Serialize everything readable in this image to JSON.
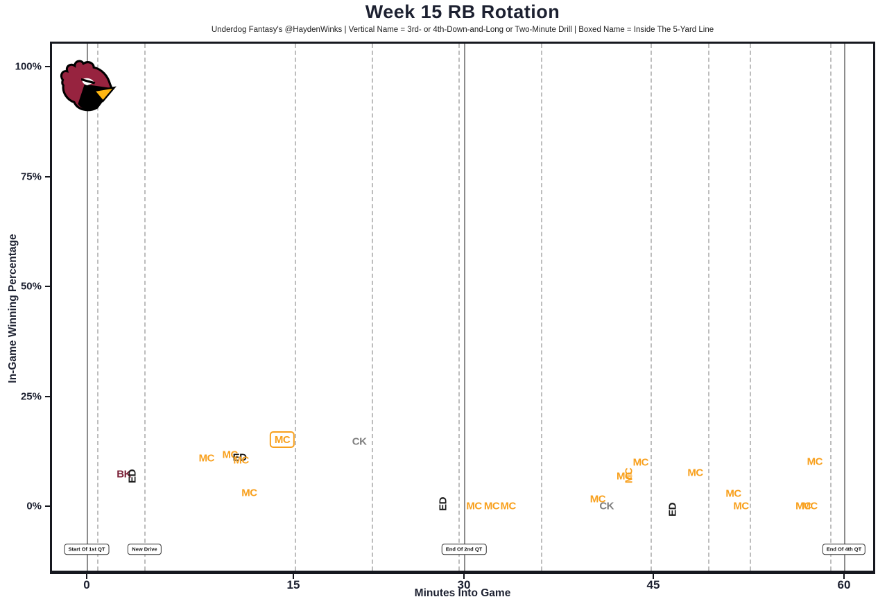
{
  "page": {
    "title": "Week 15 RB Rotation",
    "subtitle": "Underdog Fantasy's @HaydenWinks | Vertical Name = 3rd- or 4th-Down-and-Long or Two-Minute Drill | Boxed Name = Inside The 5-Yard Line"
  },
  "logo": {
    "team": "Arizona Cardinals",
    "colors": {
      "head": "#97233F",
      "outline": "#000000",
      "beak": "#FFB612",
      "eye": "#FFFFFF"
    }
  },
  "chart_data": {
    "type": "scatter",
    "title": "Week 15 RB Rotation",
    "subtitle": "Underdog Fantasy's @HaydenWinks | Vertical Name = 3rd- or 4th-Down-and-Long or Two-Minute Drill | Boxed Name = Inside The 5-Yard Line",
    "xlabel": "Minutes Into Game",
    "ylabel": "In-Game Winning Percentage",
    "x_ticks": [
      0,
      15,
      30,
      45,
      60
    ],
    "y_ticks": [
      {
        "label": "100%",
        "value": 100
      },
      {
        "label": "75%",
        "value": 75
      },
      {
        "label": "50%",
        "value": 50
      },
      {
        "label": "25%",
        "value": 25
      },
      {
        "label": "0%",
        "value": 0
      }
    ],
    "grid": "vertical-only",
    "legend": "none",
    "quarter_lines_minutes": [
      0,
      30,
      60
    ],
    "drive_lines_minutes": [
      0.75,
      4.2,
      15.1,
      21.9,
      29.5,
      36.1,
      44.8,
      49.3,
      52.6,
      58.9
    ],
    "annotations": [
      {
        "label": "Start Of 1st QT",
        "minute": 0
      },
      {
        "label": "New Drive",
        "minute": 4.2
      },
      {
        "label": "End Of 2nd QT",
        "minute": 30
      },
      {
        "label": "End Of 4th QT",
        "minute": 60
      }
    ],
    "players": [
      {
        "initials": "MC",
        "color": "#F8A01D"
      },
      {
        "initials": "ED",
        "color": "#1A1A1A"
      },
      {
        "initials": "CK",
        "color": "#7F7F7F"
      },
      {
        "initials": "BK",
        "color": "#7B2138"
      }
    ],
    "points": [
      {
        "player": "BK",
        "minute": 2.7,
        "win_pct": 7.3,
        "vertical": false,
        "boxed": false
      },
      {
        "player": "ED",
        "minute": 3.3,
        "win_pct": 6.8,
        "vertical": true,
        "boxed": false
      },
      {
        "player": "MC",
        "minute": 8.7,
        "win_pct": 10.9,
        "vertical": false,
        "boxed": false
      },
      {
        "player": "MC",
        "minute": 10.4,
        "win_pct": 11.7,
        "vertical": false,
        "boxed": false
      },
      {
        "player": "ED",
        "minute": 11.1,
        "win_pct": 11.0,
        "vertical": false,
        "boxed": false
      },
      {
        "player": "MC",
        "minute": 11.2,
        "win_pct": 10.4,
        "vertical": false,
        "boxed": false
      },
      {
        "player": "MC",
        "minute": 11.8,
        "win_pct": 3.0,
        "vertical": false,
        "boxed": false
      },
      {
        "player": "MC",
        "minute": 14.2,
        "win_pct": 15.1,
        "vertical": false,
        "boxed": true
      },
      {
        "player": "CK",
        "minute": 20.8,
        "win_pct": 14.7,
        "vertical": false,
        "boxed": false
      },
      {
        "player": "ED",
        "minute": 28.2,
        "win_pct": 0.5,
        "vertical": true,
        "boxed": false
      },
      {
        "player": "MC",
        "minute": 30.8,
        "win_pct": 0,
        "vertical": false,
        "boxed": false
      },
      {
        "player": "MC",
        "minute": 32.2,
        "win_pct": 0,
        "vertical": false,
        "boxed": false
      },
      {
        "player": "MC",
        "minute": 33.5,
        "win_pct": 0,
        "vertical": false,
        "boxed": false
      },
      {
        "player": "MC",
        "minute": 40.6,
        "win_pct": 1.6,
        "vertical": false,
        "boxed": false
      },
      {
        "player": "CK",
        "minute": 41.3,
        "win_pct": 0,
        "vertical": false,
        "boxed": false
      },
      {
        "player": "MC",
        "minute": 42.7,
        "win_pct": 6.8,
        "vertical": false,
        "boxed": false
      },
      {
        "player": "MC",
        "minute": 43.1,
        "win_pct": 6.9,
        "vertical": true,
        "boxed": false
      },
      {
        "player": "MC",
        "minute": 44.0,
        "win_pct": 9.9,
        "vertical": false,
        "boxed": false
      },
      {
        "player": "ED",
        "minute": 46.5,
        "win_pct": -0.8,
        "vertical": true,
        "boxed": false
      },
      {
        "player": "MC",
        "minute": 48.3,
        "win_pct": 7.6,
        "vertical": false,
        "boxed": false
      },
      {
        "player": "MC",
        "minute": 51.3,
        "win_pct": 2.8,
        "vertical": false,
        "boxed": false
      },
      {
        "player": "MC",
        "minute": 51.9,
        "win_pct": 0,
        "vertical": false,
        "boxed": false
      },
      {
        "player": "MC",
        "minute": 56.8,
        "win_pct": 0,
        "vertical": false,
        "boxed": false
      },
      {
        "player": "MC",
        "minute": 57.3,
        "win_pct": 0,
        "vertical": false,
        "boxed": false
      },
      {
        "player": "MC",
        "minute": 57.7,
        "win_pct": 10.1,
        "vertical": false,
        "boxed": false
      }
    ]
  }
}
